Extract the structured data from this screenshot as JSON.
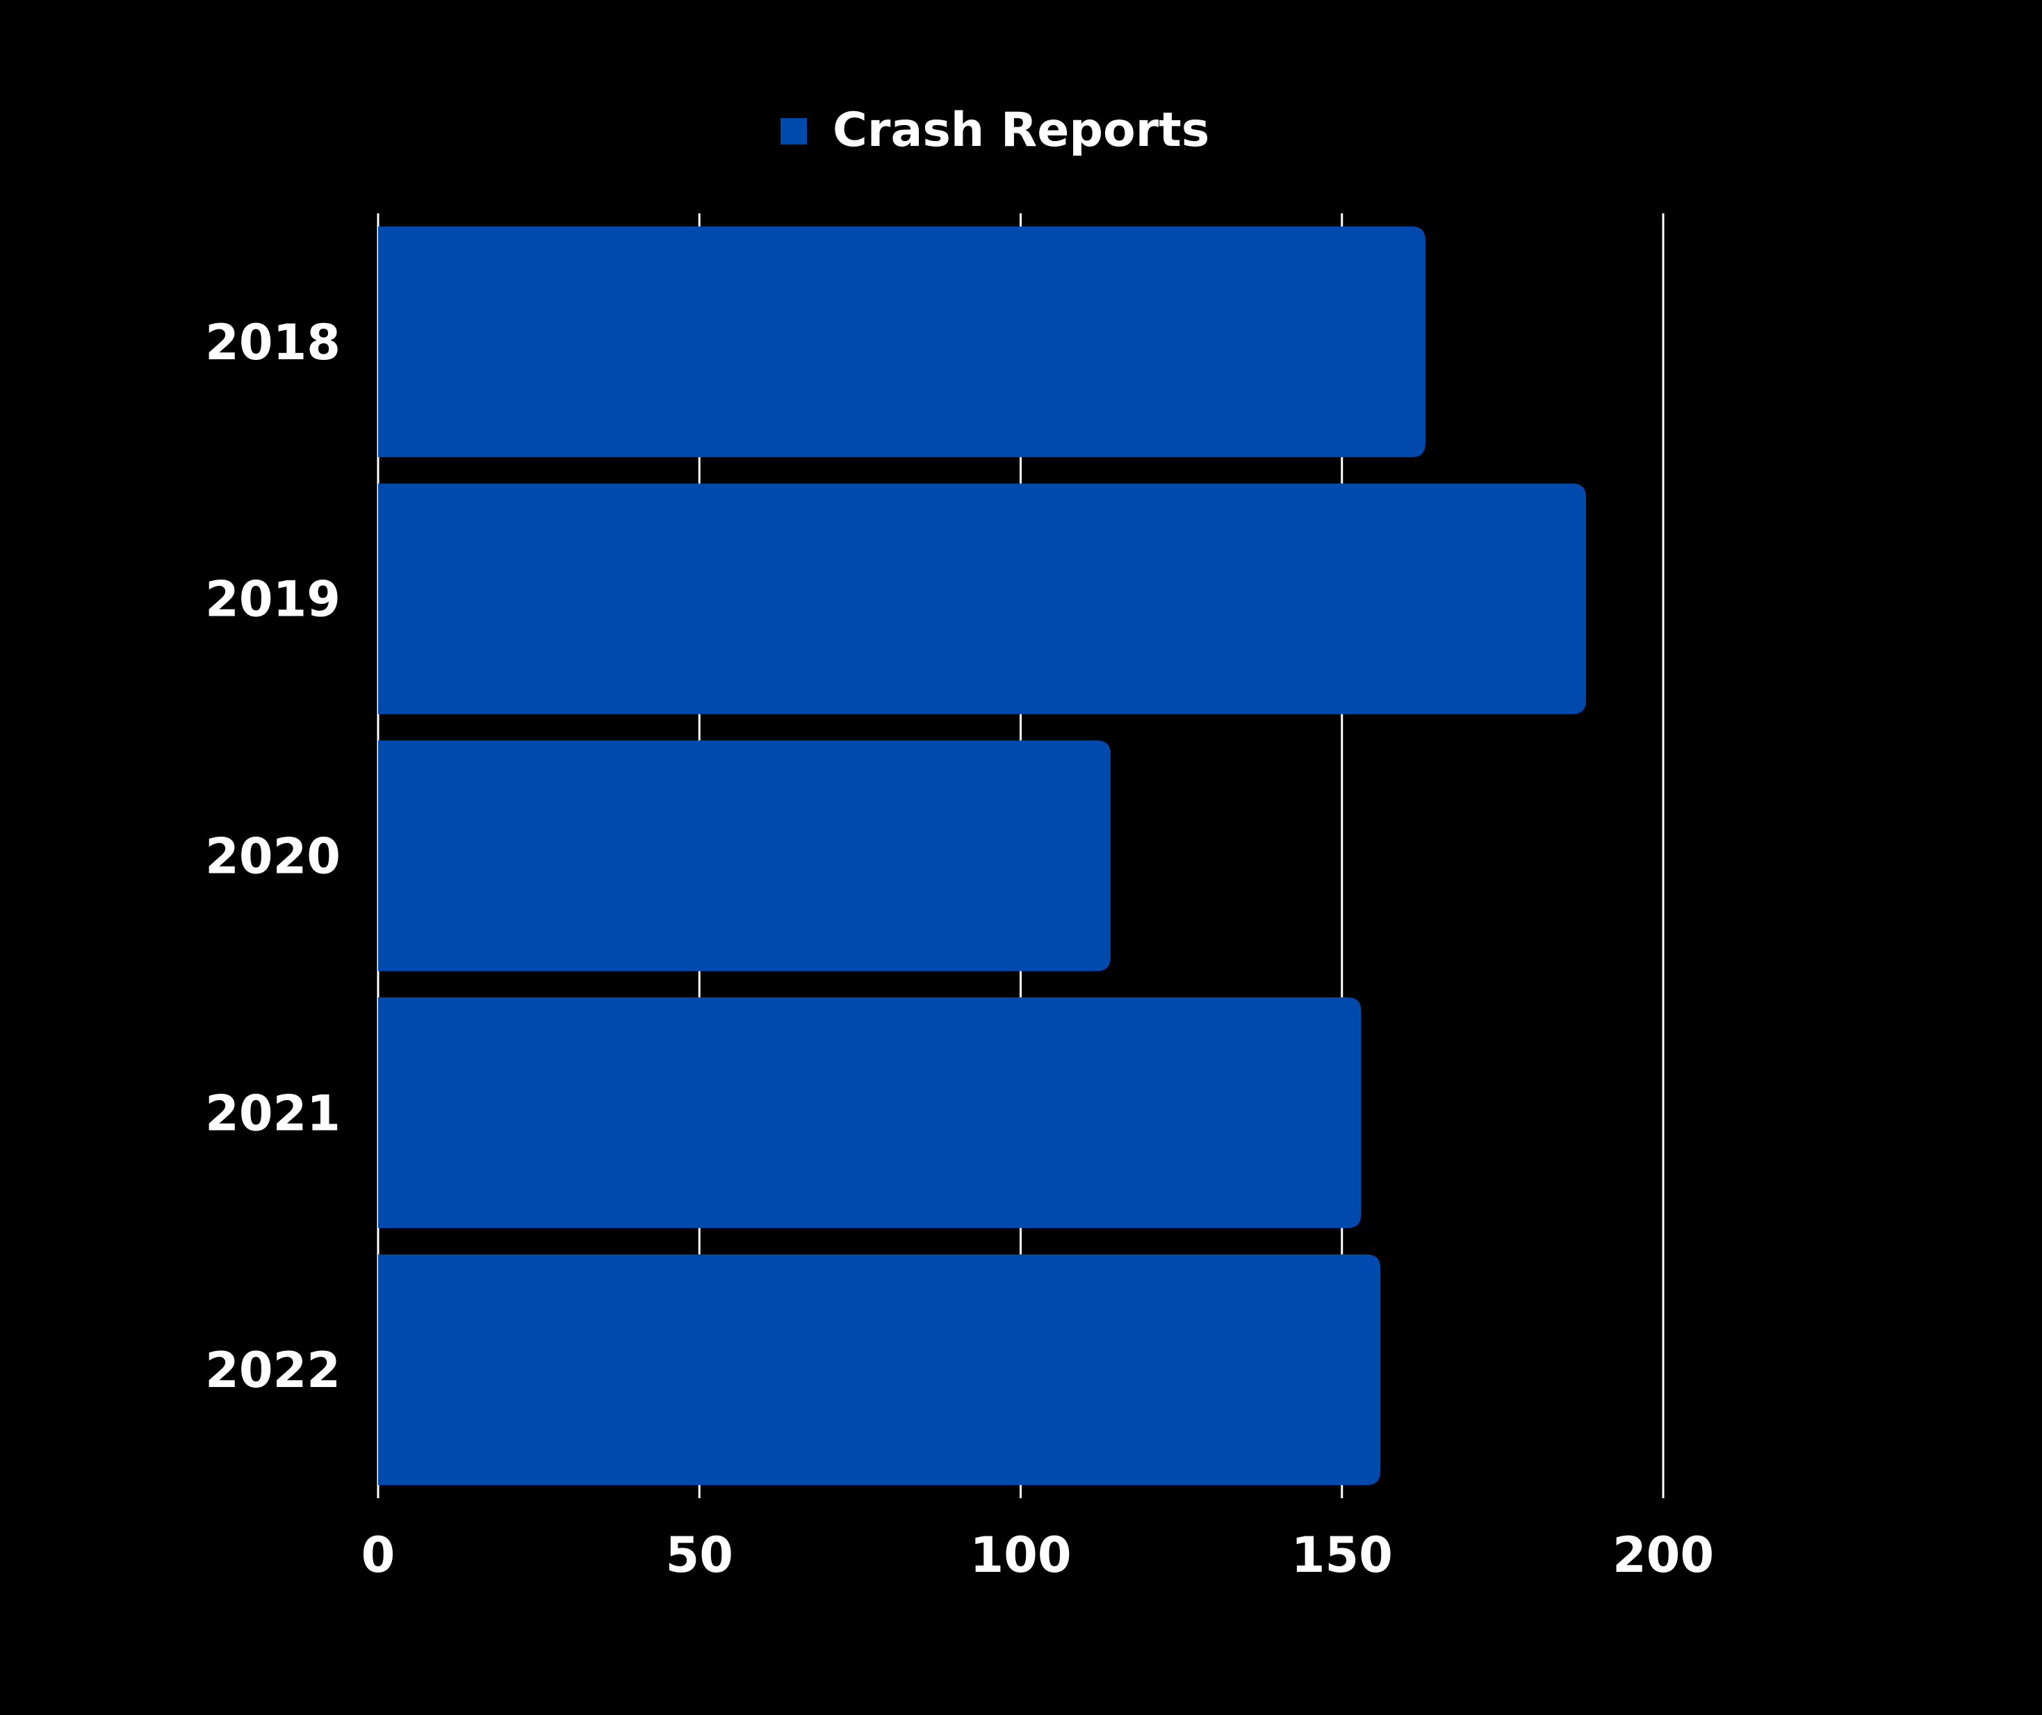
{
  "chart_data": {
    "type": "bar",
    "orientation": "horizontal",
    "categories": [
      "2018",
      "2019",
      "2020",
      "2021",
      "2022"
    ],
    "series": [
      {
        "name": "Crash Reports",
        "values": [
          163,
          188,
          114,
          153,
          156
        ],
        "color": "#004AAD"
      }
    ],
    "xlim": [
      0,
      200
    ],
    "x_ticks": [
      "0",
      "50",
      "100",
      "150",
      "200"
    ],
    "grid": true,
    "legend_position": "top-center",
    "background": "#000000",
    "grid_color": "#ffffff",
    "text_color": "#ffffff"
  }
}
